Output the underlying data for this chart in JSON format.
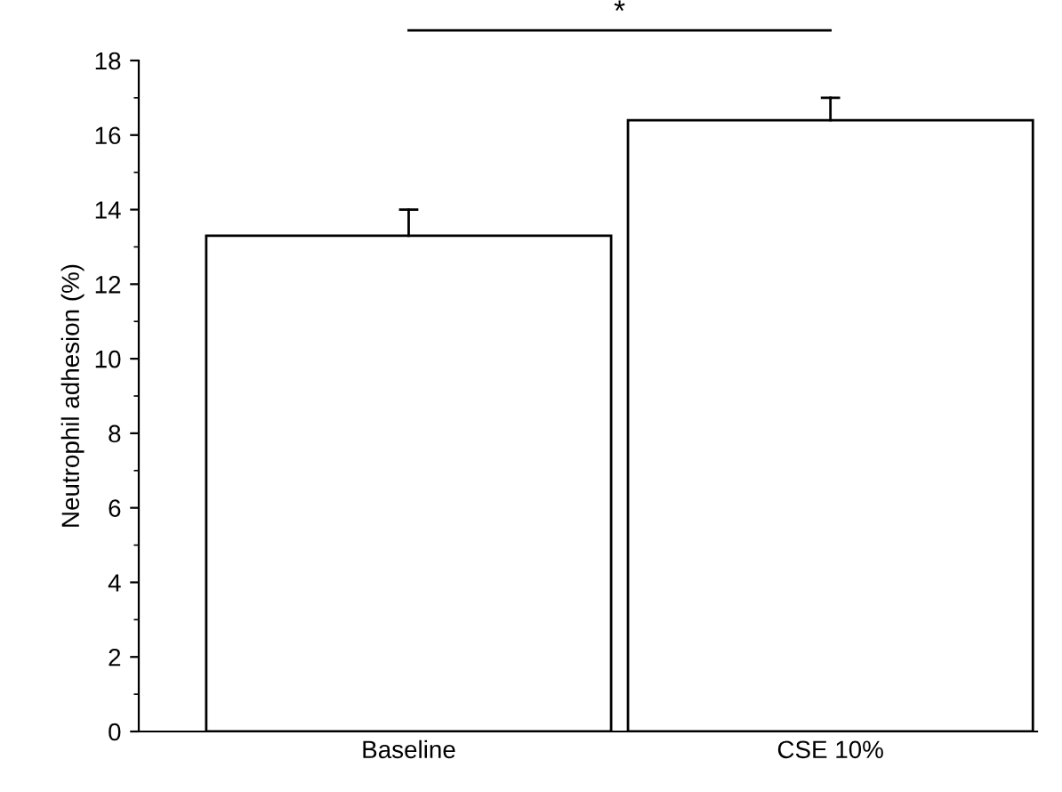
{
  "chart_data": {
    "type": "bar",
    "ylabel": "Neutrophil adhesion (%)",
    "categories": [
      "Baseline",
      "CSE 10%"
    ],
    "values": [
      13.3,
      16.4
    ],
    "errors": [
      [
        13.3,
        14.0
      ],
      [
        16.4,
        17.0
      ]
    ],
    "color": "#ffffff",
    "ylim": [
      0,
      18
    ],
    "yticks": [
      0,
      2,
      4,
      6,
      8,
      10,
      12,
      14,
      16,
      18
    ],
    "grid": false,
    "legend": false,
    "annotations": [
      "*"
    ]
  }
}
